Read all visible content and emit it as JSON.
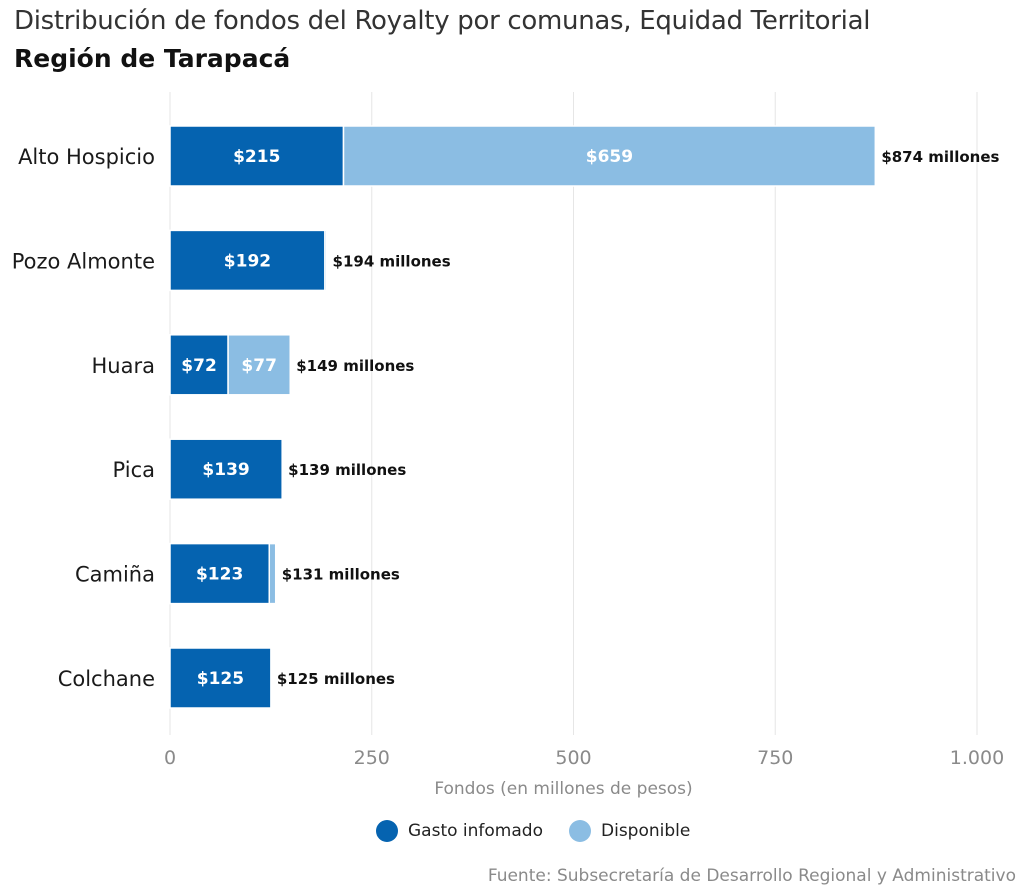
{
  "header": {
    "title": "Distribución de fondos del Royalty por comunas, Equidad Territorial",
    "subtitle": "Región de Tarapacá"
  },
  "source": "Fuente: Subsecretaría de Desarrollo Regional y Administrativo",
  "legend": {
    "items": [
      {
        "label": "Gasto infomado",
        "color": "#0563b0"
      },
      {
        "label": "Disponible",
        "color": "#8bbde3"
      }
    ]
  },
  "chart_data": {
    "type": "bar",
    "orientation": "horizontal",
    "stacked": true,
    "categories": [
      "Alto Hospicio",
      "Pozo Almonte",
      "Huara",
      "Pica",
      "Camiña",
      "Colchane"
    ],
    "series": [
      {
        "name": "Gasto infomado",
        "values": [
          215,
          192,
          72,
          139,
          123,
          125
        ],
        "labels": [
          "$215",
          "$192",
          "$72",
          "$139",
          "$123",
          "$125"
        ],
        "color": "#0563b0"
      },
      {
        "name": "Disponible",
        "values": [
          659,
          2,
          77,
          0,
          8,
          0
        ],
        "labels": [
          "$659",
          "",
          "$77",
          "",
          "",
          ""
        ],
        "color": "#8bbde3"
      }
    ],
    "total_labels": [
      "$874 millones",
      "$194 millones",
      "$149 millones",
      "$139 millones",
      "$131 millones",
      "$125 millones"
    ],
    "xlabel": "Fondos (en millones de pesos)",
    "xlim": [
      0,
      1000
    ],
    "xticks": [
      0,
      250,
      500,
      750,
      1000
    ],
    "xtick_labels": [
      "0",
      "250",
      "500",
      "750",
      "1.000"
    ],
    "grid": "vertical",
    "legend_position": "bottom"
  }
}
